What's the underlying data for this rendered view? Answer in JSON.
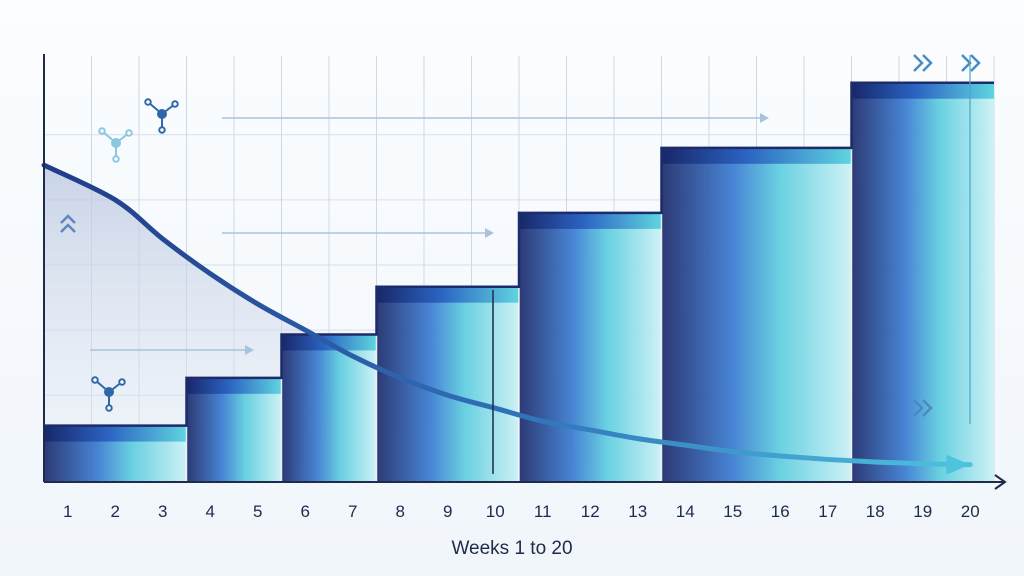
{
  "chart_data": {
    "type": "bar",
    "title": "",
    "xlabel": "Weeks 1 to 20",
    "ylabel": "",
    "x": [
      1,
      2,
      3,
      4,
      5,
      6,
      7,
      8,
      9,
      10,
      11,
      12,
      13,
      14,
      15,
      16,
      17,
      18,
      19,
      20
    ],
    "xticks": [
      "1",
      "2",
      "3",
      "4",
      "5",
      "6",
      "7",
      "8",
      "9",
      "10",
      "11",
      "12",
      "13",
      "14",
      "15",
      "16",
      "17",
      "18",
      "19",
      "20"
    ],
    "series": [
      {
        "style": "step",
        "values": [
          1.3,
          1.3,
          1.3,
          2.4,
          2.4,
          3.4,
          3.4,
          4.5,
          4.5,
          4.5,
          6.2,
          6.2,
          6.2,
          7.7,
          7.7,
          7.7,
          7.7,
          9.2,
          9.2,
          9.2
        ]
      },
      {
        "style": "curve",
        "values": [
          7.3,
          6.5,
          5.6,
          4.8,
          4.1,
          3.5,
          2.9,
          2.4,
          2.0,
          1.7,
          1.4,
          1.2,
          1.0,
          0.85,
          0.7,
          0.6,
          0.52,
          0.46,
          0.42,
          0.4
        ]
      }
    ],
    "ylim": [
      0,
      10
    ],
    "grid": true,
    "legend": "none"
  },
  "colors": {
    "step_dark": "#1b2b6b",
    "step_mid": "#3a74c9",
    "step_light": "#63d4dc",
    "curve_start": "#1f3b86",
    "curve_end": "#4ec3de",
    "axis": "#1e2b4a",
    "grid": "#cfd9e6",
    "icon": "#2f68a8"
  },
  "icons": [
    "molecule-icon",
    "molecule-icon",
    "molecule-icon",
    "double-chevron-up-icon",
    "double-chevron-right-icon",
    "arrow-right-icon"
  ]
}
